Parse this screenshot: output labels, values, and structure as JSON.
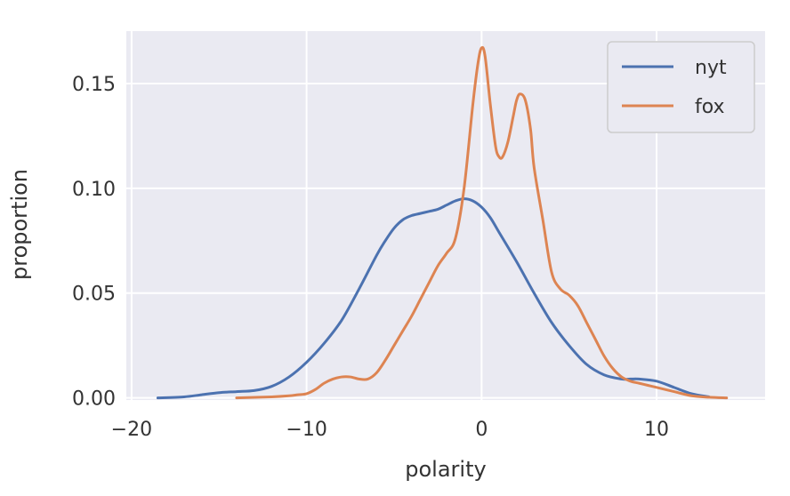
{
  "chart_data": {
    "type": "line",
    "title": "",
    "xlabel": "polarity",
    "ylabel": "proportion",
    "xlim": [
      -20.3,
      16.2
    ],
    "ylim": [
      -0.001,
      0.175
    ],
    "x_ticks": [
      -20,
      -10,
      0,
      10
    ],
    "x_tick_labels": [
      "−20",
      "−10",
      "0",
      "10"
    ],
    "y_ticks": [
      0.0,
      0.05,
      0.1,
      0.15
    ],
    "y_tick_labels": [
      "0.00",
      "0.05",
      "0.10",
      "0.15"
    ],
    "grid": true,
    "background_color": "#eaeaf2",
    "grid_color": "#ffffff",
    "legend": {
      "position": "top-right"
    },
    "series": [
      {
        "name": "nyt",
        "color": "#4c72b0",
        "x": [
          -18.5,
          -17,
          -16,
          -15,
          -14,
          -13,
          -12,
          -11,
          -10,
          -9,
          -8,
          -7,
          -6,
          -5.5,
          -5,
          -4.5,
          -4,
          -3.5,
          -3,
          -2.5,
          -2,
          -1.5,
          -1,
          -0.5,
          0,
          0.5,
          1,
          2,
          3,
          4,
          5,
          6,
          7,
          8,
          8.5,
          9,
          10,
          11,
          12,
          13
        ],
        "y": [
          0.0,
          0.0005,
          0.0015,
          0.0025,
          0.003,
          0.0035,
          0.0055,
          0.01,
          0.017,
          0.026,
          0.037,
          0.052,
          0.068,
          0.075,
          0.081,
          0.085,
          0.087,
          0.088,
          0.089,
          0.09,
          0.092,
          0.094,
          0.095,
          0.094,
          0.091,
          0.086,
          0.079,
          0.065,
          0.05,
          0.036,
          0.025,
          0.016,
          0.011,
          0.009,
          0.009,
          0.009,
          0.008,
          0.005,
          0.002,
          0.0005
        ]
      },
      {
        "name": "fox",
        "color": "#dd8452",
        "x": [
          -14,
          -12,
          -11,
          -10.5,
          -10,
          -9.5,
          -9,
          -8.5,
          -8,
          -7.5,
          -7,
          -6.5,
          -6,
          -5.5,
          -5,
          -4.5,
          -4,
          -3.5,
          -3,
          -2.5,
          -2,
          -1.5,
          -1,
          -0.5,
          -0.2,
          0,
          0.2,
          0.5,
          0.8,
          1,
          1.2,
          1.5,
          1.8,
          2,
          2.2,
          2.5,
          2.8,
          3,
          3.5,
          4,
          4.5,
          5,
          5.5,
          6,
          6.5,
          7,
          7.5,
          8,
          8.5,
          9,
          9.5,
          10,
          11,
          12,
          13,
          14
        ],
        "y": [
          0.0,
          0.0005,
          0.001,
          0.0015,
          0.002,
          0.004,
          0.007,
          0.009,
          0.01,
          0.01,
          0.009,
          0.009,
          0.012,
          0.018,
          0.025,
          0.032,
          0.039,
          0.047,
          0.055,
          0.063,
          0.069,
          0.076,
          0.1,
          0.14,
          0.16,
          0.167,
          0.163,
          0.14,
          0.12,
          0.115,
          0.115,
          0.122,
          0.134,
          0.142,
          0.145,
          0.142,
          0.128,
          0.11,
          0.085,
          0.06,
          0.052,
          0.049,
          0.044,
          0.036,
          0.028,
          0.02,
          0.014,
          0.01,
          0.008,
          0.007,
          0.006,
          0.005,
          0.003,
          0.001,
          0.0003,
          0.0
        ]
      }
    ]
  }
}
